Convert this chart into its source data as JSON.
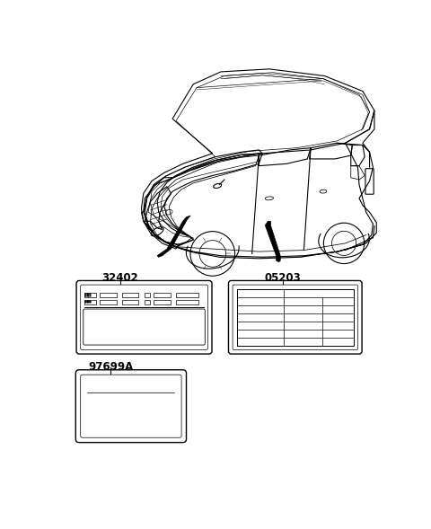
{
  "bg_color": "#ffffff",
  "line_color": "#000000",
  "label_32402": "32402",
  "label_05203": "05203",
  "label_97699A": "97699A",
  "font_size_labels": 8.5,
  "car_lw": 0.8,
  "arrow_lw": 2.5
}
